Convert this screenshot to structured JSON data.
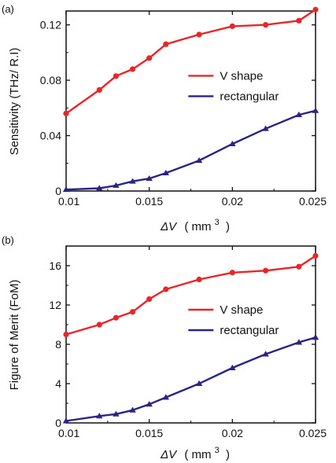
{
  "colors": {
    "red": "#e8262a",
    "blue": "#2b2386",
    "axis": "#111111"
  },
  "chart_data": [
    {
      "panel_label": "(a)",
      "type": "line",
      "xlabel_prefix": "ΔV",
      "xlabel_unit": "( mm",
      "xlabel_sup": "3",
      "xlabel_close": ")",
      "ylabel": "Sensitivity (THz/ R.I)",
      "xlim": [
        0.01,
        0.025
      ],
      "ylim": [
        0,
        0.13
      ],
      "xticks": [
        0.01,
        0.015,
        0.02,
        0.025
      ],
      "xtick_labels": [
        "0.01",
        "0.015",
        "0.02",
        "0.025"
      ],
      "yticks": [
        0,
        0.04,
        0.08,
        0.12
      ],
      "ytick_labels": [
        "0",
        "0.04",
        "0.08",
        "0.12"
      ],
      "legend_position": "center-right",
      "series": [
        {
          "name": "rectangular",
          "color": "#2b2386",
          "marker": "triangle",
          "x": [
            0.01,
            0.012,
            0.013,
            0.014,
            0.015,
            0.016,
            0.018,
            0.02,
            0.022,
            0.024,
            0.025
          ],
          "y": [
            0.001,
            0.002,
            0.004,
            0.007,
            0.009,
            0.013,
            0.022,
            0.034,
            0.045,
            0.055,
            0.058
          ]
        },
        {
          "name": "V shape",
          "color": "#e8262a",
          "marker": "circle",
          "x": [
            0.01,
            0.012,
            0.013,
            0.014,
            0.015,
            0.016,
            0.018,
            0.02,
            0.022,
            0.024,
            0.025
          ],
          "y": [
            0.056,
            0.073,
            0.083,
            0.088,
            0.096,
            0.106,
            0.113,
            0.119,
            0.12,
            0.123,
            0.131
          ]
        }
      ]
    },
    {
      "panel_label": "(b)",
      "type": "line",
      "xlabel_prefix": "ΔV",
      "xlabel_unit": "( mm",
      "xlabel_sup": "3",
      "xlabel_close": ")",
      "ylabel": "Figure of Merit (FoM)",
      "xlim": [
        0.01,
        0.025
      ],
      "ylim": [
        0,
        18
      ],
      "xticks": [
        0.01,
        0.015,
        0.02,
        0.025
      ],
      "xtick_labels": [
        "0.01",
        "0.015",
        "0.02",
        "0.025"
      ],
      "yticks": [
        0,
        4,
        8,
        12,
        16
      ],
      "ytick_labels": [
        "0",
        "4",
        "8",
        "12",
        "16"
      ],
      "legend_position": "center-right",
      "series": [
        {
          "name": "rectangular",
          "color": "#2b2386",
          "marker": "triangle",
          "x": [
            0.01,
            0.012,
            0.013,
            0.014,
            0.015,
            0.016,
            0.018,
            0.02,
            0.022,
            0.024,
            0.025
          ],
          "y": [
            0.2,
            0.7,
            0.9,
            1.3,
            1.9,
            2.6,
            4.0,
            5.6,
            7.0,
            8.2,
            8.7
          ]
        },
        {
          "name": "V shape",
          "color": "#e8262a",
          "marker": "circle",
          "x": [
            0.01,
            0.012,
            0.013,
            0.014,
            0.015,
            0.016,
            0.018,
            0.02,
            0.022,
            0.024,
            0.025
          ],
          "y": [
            9.0,
            10.0,
            10.7,
            11.3,
            12.6,
            13.6,
            14.6,
            15.3,
            15.5,
            15.9,
            17.0
          ]
        }
      ]
    }
  ]
}
